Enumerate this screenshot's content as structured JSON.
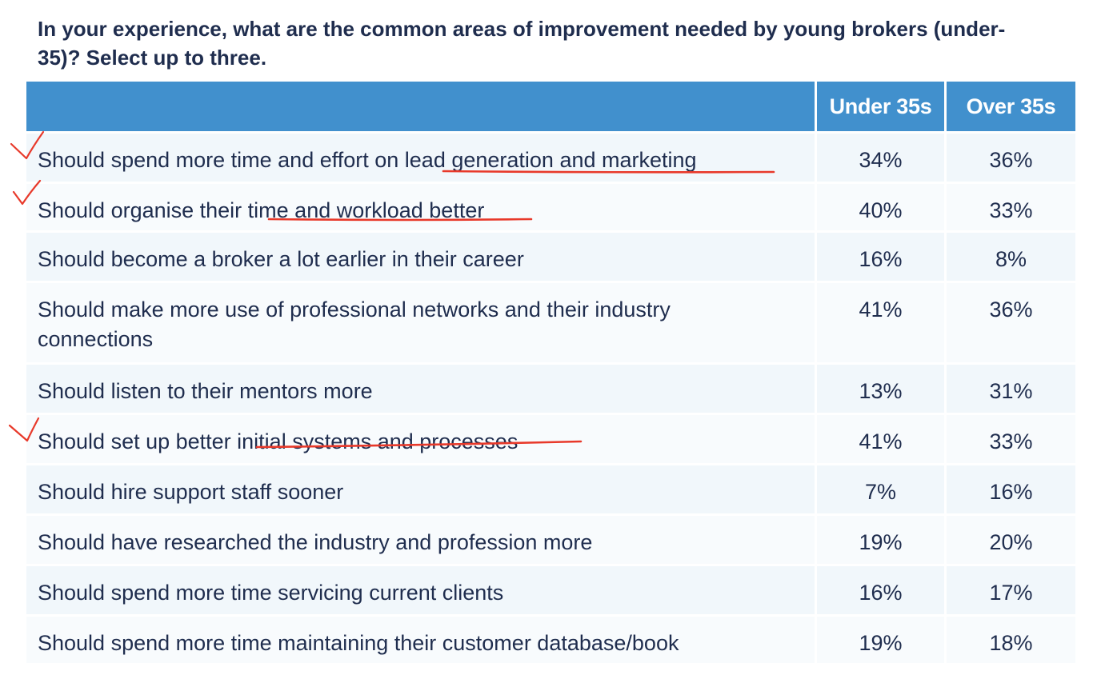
{
  "question": "In your experience, what are the common areas of improvement needed by young brokers (under-35)? Select up to three.",
  "table": {
    "columns": [
      "",
      "Under 35s",
      "Over 35s"
    ],
    "rows": [
      {
        "label": "Should spend more time and effort on lead generation and marketing",
        "under35": "34%",
        "over35": "36%"
      },
      {
        "label": "Should organise their time and workload better",
        "under35": "40%",
        "over35": "33%"
      },
      {
        "label": "Should become a broker a lot earlier in their career",
        "under35": "16%",
        "over35": "8%"
      },
      {
        "label": "Should make more use of professional networks and their industry connections",
        "under35": "41%",
        "over35": "36%"
      },
      {
        "label": "Should listen to their mentors more",
        "under35": "13%",
        "over35": "31%"
      },
      {
        "label": "Should set up better initial systems and processes",
        "under35": "41%",
        "over35": "33%"
      },
      {
        "label": "Should hire support staff sooner",
        "under35": "7%",
        "over35": "16%"
      },
      {
        "label": "Should have researched the industry and profession more",
        "under35": "19%",
        "over35": "20%"
      },
      {
        "label": "Should spend more time servicing current clients",
        "under35": "16%",
        "over35": "17%"
      },
      {
        "label": "Should spend more time maintaining their customer database/book",
        "under35": "19%",
        "over35": "18%"
      }
    ]
  },
  "colors": {
    "header": "#4190cd",
    "text": "#1f2d4e",
    "row_alt_a": "#f1f7fb",
    "row_alt_b": "#f8fbfd",
    "annotation": "#e8392a"
  },
  "annotations": {
    "marks": [
      "check-mark",
      "underline-stroke"
    ]
  }
}
